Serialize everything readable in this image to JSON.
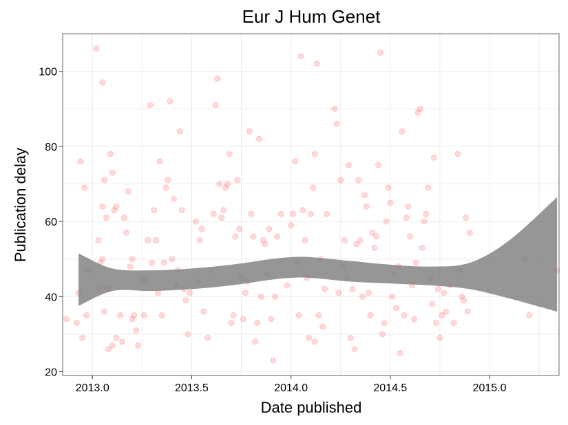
{
  "chart_data": {
    "type": "scatter",
    "title": "Eur J Hum Genet",
    "xlabel": "Date published",
    "ylabel": "Publication delay",
    "xlim": [
      2012.85,
      2015.35
    ],
    "ylim": [
      19,
      110
    ],
    "xticks": [
      2013.0,
      2013.5,
      2014.0,
      2014.5,
      2015.0
    ],
    "xtick_labels": [
      "2013.0",
      "2013.5",
      "2014.0",
      "2014.5",
      "2015.0"
    ],
    "yticks": [
      20,
      40,
      60,
      80,
      100
    ],
    "ytick_labels": [
      "20",
      "40",
      "60",
      "80",
      "100"
    ],
    "grid": true,
    "colors": {
      "points": "#ff0000",
      "band": "#7f7f7f",
      "frame": "#808080",
      "grid": "#ebebeb"
    },
    "series": [
      {
        "values": [
          [
            2012.87,
            34
          ],
          [
            2012.92,
            33
          ],
          [
            2012.93,
            41
          ],
          [
            2012.94,
            76
          ],
          [
            2012.95,
            29
          ],
          [
            2012.96,
            69
          ],
          [
            2012.97,
            35
          ],
          [
            2012.98,
            47
          ],
          [
            2013.02,
            106
          ],
          [
            2013.03,
            55
          ],
          [
            2013.04,
            49
          ],
          [
            2013.05,
            97
          ],
          [
            2013.05,
            64
          ],
          [
            2013.06,
            71
          ],
          [
            2013.07,
            61
          ],
          [
            2013.08,
            42
          ],
          [
            2013.09,
            78
          ],
          [
            2013.1,
            73
          ],
          [
            2013.11,
            63
          ],
          [
            2013.12,
            64
          ],
          [
            2013.03,
            42
          ],
          [
            2013.05,
            50
          ],
          [
            2013.06,
            36
          ],
          [
            2013.08,
            26
          ],
          [
            2013.1,
            27
          ],
          [
            2013.12,
            29
          ],
          [
            2013.14,
            35
          ],
          [
            2013.15,
            28
          ],
          [
            2013.16,
            61
          ],
          [
            2013.17,
            57
          ],
          [
            2013.18,
            68
          ],
          [
            2013.19,
            48
          ],
          [
            2013.2,
            34
          ],
          [
            2013.2,
            50
          ],
          [
            2013.21,
            35
          ],
          [
            2013.22,
            31
          ],
          [
            2013.23,
            27
          ],
          [
            2013.25,
            45
          ],
          [
            2013.26,
            35
          ],
          [
            2013.27,
            44
          ],
          [
            2013.28,
            55
          ],
          [
            2013.29,
            91
          ],
          [
            2013.3,
            49
          ],
          [
            2013.31,
            63
          ],
          [
            2013.32,
            55
          ],
          [
            2013.33,
            41
          ],
          [
            2013.34,
            76
          ],
          [
            2013.35,
            35
          ],
          [
            2013.36,
            49
          ],
          [
            2013.37,
            69
          ],
          [
            2013.38,
            71
          ],
          [
            2013.39,
            92
          ],
          [
            2013.4,
            50
          ],
          [
            2013.41,
            66
          ],
          [
            2013.42,
            43
          ],
          [
            2013.43,
            47
          ],
          [
            2013.44,
            84
          ],
          [
            2013.45,
            63
          ],
          [
            2013.46,
            42
          ],
          [
            2013.47,
            39
          ],
          [
            2013.48,
            30
          ],
          [
            2013.49,
            41
          ],
          [
            2013.52,
            60
          ],
          [
            2013.53,
            44
          ],
          [
            2013.54,
            55
          ],
          [
            2013.55,
            58
          ],
          [
            2013.56,
            36
          ],
          [
            2013.58,
            29
          ],
          [
            2013.6,
            47
          ],
          [
            2013.61,
            62
          ],
          [
            2013.62,
            91
          ],
          [
            2013.63,
            98
          ],
          [
            2013.64,
            70
          ],
          [
            2013.65,
            61
          ],
          [
            2013.66,
            63
          ],
          [
            2013.67,
            69
          ],
          [
            2013.68,
            70
          ],
          [
            2013.69,
            78
          ],
          [
            2013.7,
            33
          ],
          [
            2013.71,
            35
          ],
          [
            2013.72,
            56
          ],
          [
            2013.73,
            71
          ],
          [
            2013.74,
            58
          ],
          [
            2013.75,
            45
          ],
          [
            2013.76,
            34
          ],
          [
            2013.77,
            41
          ],
          [
            2013.78,
            44
          ],
          [
            2013.79,
            84
          ],
          [
            2013.8,
            62
          ],
          [
            2013.81,
            56
          ],
          [
            2013.82,
            28
          ],
          [
            2013.83,
            33
          ],
          [
            2013.84,
            82
          ],
          [
            2013.85,
            40
          ],
          [
            2013.86,
            55
          ],
          [
            2013.87,
            54
          ],
          [
            2013.88,
            46
          ],
          [
            2013.89,
            58
          ],
          [
            2013.9,
            34
          ],
          [
            2013.91,
            23
          ],
          [
            2013.92,
            40
          ],
          [
            2013.93,
            56
          ],
          [
            2013.95,
            62
          ],
          [
            2013.98,
            43
          ],
          [
            2014.0,
            59
          ],
          [
            2014.01,
            62
          ],
          [
            2014.02,
            76
          ],
          [
            2014.03,
            49
          ],
          [
            2014.04,
            35
          ],
          [
            2014.05,
            104
          ],
          [
            2014.06,
            63
          ],
          [
            2014.07,
            55
          ],
          [
            2014.08,
            45
          ],
          [
            2014.09,
            29
          ],
          [
            2014.1,
            62
          ],
          [
            2014.11,
            69
          ],
          [
            2014.12,
            78
          ],
          [
            2014.12,
            28
          ],
          [
            2014.13,
            102
          ],
          [
            2014.14,
            35
          ],
          [
            2014.15,
            50
          ],
          [
            2014.16,
            32
          ],
          [
            2014.17,
            42
          ],
          [
            2014.18,
            62
          ],
          [
            2014.22,
            90
          ],
          [
            2014.23,
            86
          ],
          [
            2014.24,
            41
          ],
          [
            2014.25,
            71
          ],
          [
            2014.26,
            48
          ],
          [
            2014.27,
            55
          ],
          [
            2014.28,
            45
          ],
          [
            2014.29,
            75
          ],
          [
            2014.3,
            29
          ],
          [
            2014.31,
            42
          ],
          [
            2014.32,
            26
          ],
          [
            2014.33,
            54
          ],
          [
            2014.34,
            71
          ],
          [
            2014.35,
            55
          ],
          [
            2014.36,
            40
          ],
          [
            2014.37,
            67
          ],
          [
            2014.38,
            64
          ],
          [
            2014.39,
            41
          ],
          [
            2014.4,
            35
          ],
          [
            2014.41,
            57
          ],
          [
            2014.42,
            53
          ],
          [
            2014.43,
            56
          ],
          [
            2014.44,
            75
          ],
          [
            2014.45,
            105
          ],
          [
            2014.46,
            30
          ],
          [
            2014.47,
            33
          ],
          [
            2014.48,
            60
          ],
          [
            2014.49,
            69
          ],
          [
            2014.5,
            65
          ],
          [
            2014.51,
            40
          ],
          [
            2014.52,
            46
          ],
          [
            2014.53,
            37
          ],
          [
            2014.54,
            48
          ],
          [
            2014.55,
            25
          ],
          [
            2014.56,
            84
          ],
          [
            2014.57,
            35
          ],
          [
            2014.58,
            61
          ],
          [
            2014.59,
            64
          ],
          [
            2014.6,
            56
          ],
          [
            2014.61,
            43
          ],
          [
            2014.62,
            34
          ],
          [
            2014.63,
            49
          ],
          [
            2014.64,
            89
          ],
          [
            2014.65,
            90
          ],
          [
            2014.66,
            53
          ],
          [
            2014.67,
            60
          ],
          [
            2014.68,
            62
          ],
          [
            2014.69,
            69
          ],
          [
            2014.7,
            45
          ],
          [
            2014.71,
            38
          ],
          [
            2014.72,
            77
          ],
          [
            2014.73,
            33
          ],
          [
            2014.74,
            42
          ],
          [
            2014.75,
            29
          ],
          [
            2014.76,
            35
          ],
          [
            2014.77,
            41
          ],
          [
            2014.78,
            36
          ],
          [
            2014.8,
            43
          ],
          [
            2014.82,
            33
          ],
          [
            2014.84,
            78
          ],
          [
            2014.85,
            47
          ],
          [
            2014.86,
            40
          ],
          [
            2014.87,
            39
          ],
          [
            2014.88,
            61
          ],
          [
            2014.89,
            36
          ],
          [
            2014.9,
            57
          ],
          [
            2015.18,
            50
          ],
          [
            2015.2,
            35
          ],
          [
            2015.34,
            47
          ]
        ]
      }
    ],
    "smooth_band": {
      "x": [
        2012.93,
        2013.1,
        2013.3,
        2013.5,
        2013.7,
        2013.9,
        2014.0,
        2014.1,
        2014.3,
        2014.5,
        2014.7,
        2014.9,
        2015.1,
        2015.34
      ],
      "lower": [
        37.5,
        41.5,
        41.5,
        42.0,
        43.0,
        44.5,
        45.0,
        45.0,
        44.0,
        43.5,
        43.0,
        42.0,
        39.5,
        36.0
      ],
      "upper": [
        51.5,
        47.5,
        47.0,
        47.5,
        48.5,
        50.0,
        50.5,
        50.5,
        49.5,
        48.5,
        48.0,
        49.0,
        55.0,
        66.5
      ]
    }
  }
}
